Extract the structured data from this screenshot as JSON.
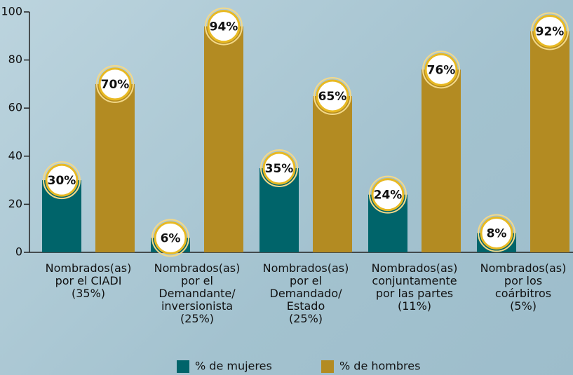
{
  "chart_data": {
    "type": "bar",
    "categories": [
      [
        "Nombrados(as)",
        "por el CIADI",
        "(35%)"
      ],
      [
        "Nombrados(as)",
        "por el",
        "Demandante/",
        "inversionista",
        "(25%)"
      ],
      [
        "Nombrados(as)",
        "por el",
        "Demandado/",
        "Estado",
        "(25%)"
      ],
      [
        "Nombrados(as)",
        "conjuntamente",
        "por las partes",
        "(11%)"
      ],
      [
        "Nombrados(as)",
        "por los",
        "coárbitros",
        "(5%)"
      ]
    ],
    "series": [
      {
        "name": "% de mujeres",
        "color": "#00646a",
        "values": [
          30,
          6,
          35,
          24,
          8
        ],
        "value_labels": [
          "30%",
          "6%",
          "35%",
          "24%",
          "8%"
        ]
      },
      {
        "name": "% de hombres",
        "color": "#b38b22",
        "values": [
          70,
          94,
          65,
          76,
          92
        ],
        "value_labels": [
          "70%",
          "94%",
          "65%",
          "76%",
          "92%"
        ]
      }
    ],
    "ylim": [
      0,
      100
    ],
    "yticks": [
      0,
      20,
      40,
      60,
      80,
      100
    ],
    "grid": false,
    "legend": "bottom"
  }
}
